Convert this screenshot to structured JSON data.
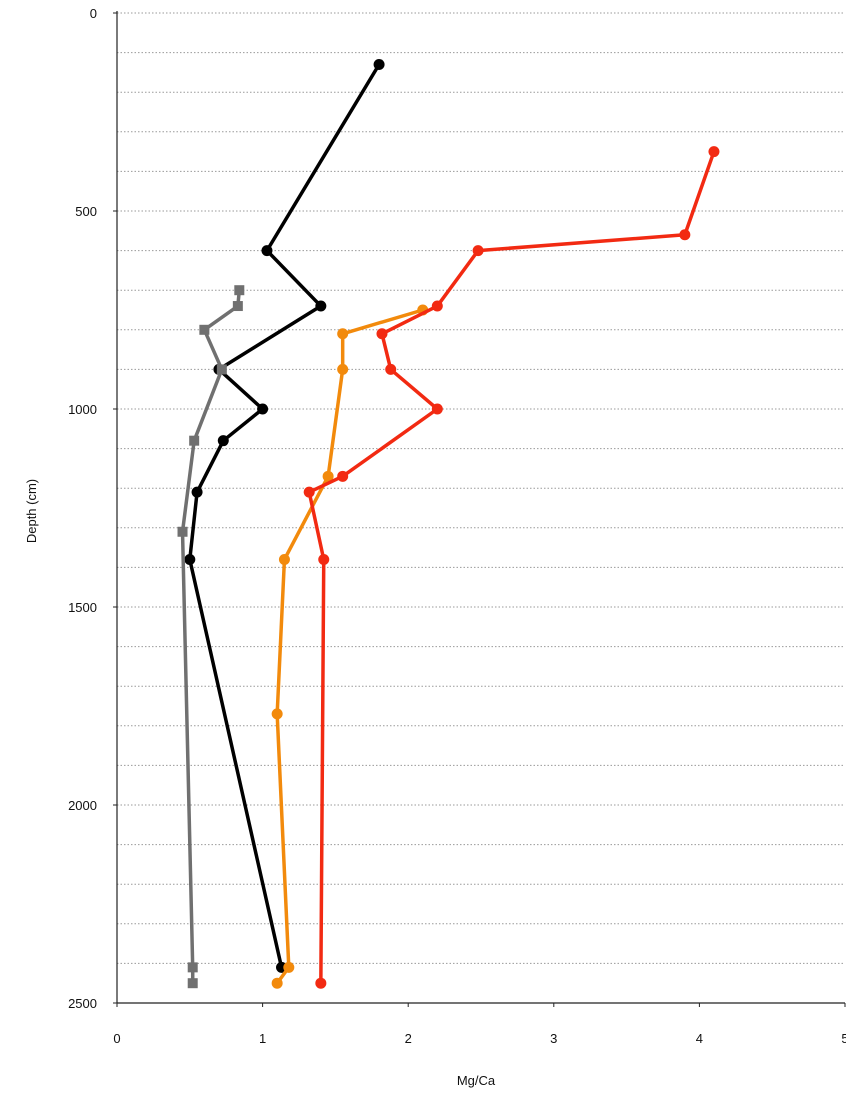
{
  "chart_data": {
    "type": "line",
    "title": "",
    "xlabel": "Mg/Ca",
    "ylabel": "Depth (cm)",
    "xlim": [
      0,
      5
    ],
    "ylim": [
      0,
      2500
    ],
    "y_inverted": true,
    "x_ticks": [
      "0",
      "1",
      "2",
      "3",
      "4",
      "5"
    ],
    "y_ticks": [
      "0",
      "500",
      "1000",
      "1500",
      "2000",
      "2500"
    ],
    "grid": "horizontal dotted every 100 cm",
    "series": [
      {
        "color": "#000000",
        "marker": "circle",
        "points": [
          {
            "x": 1.8,
            "y": 130
          },
          {
            "x": 1.03,
            "y": 600
          },
          {
            "x": 1.4,
            "y": 740
          },
          {
            "x": 0.7,
            "y": 900
          },
          {
            "x": 1.0,
            "y": 1000
          },
          {
            "x": 0.73,
            "y": 1080
          },
          {
            "x": 0.55,
            "y": 1210
          },
          {
            "x": 0.5,
            "y": 1380
          },
          {
            "x": 1.13,
            "y": 2410
          }
        ]
      },
      {
        "color": "#707070",
        "marker": "square",
        "points": [
          {
            "x": 0.84,
            "y": 700
          },
          {
            "x": 0.83,
            "y": 740
          },
          {
            "x": 0.6,
            "y": 800
          },
          {
            "x": 0.72,
            "y": 900
          },
          {
            "x": 0.53,
            "y": 1080
          },
          {
            "x": 0.45,
            "y": 1310
          },
          {
            "x": 0.52,
            "y": 2410
          },
          {
            "x": 0.52,
            "y": 2450
          }
        ]
      },
      {
        "color": "#f28a0c",
        "marker": "circle",
        "points": [
          {
            "x": 2.1,
            "y": 750
          },
          {
            "x": 1.55,
            "y": 810
          },
          {
            "x": 1.55,
            "y": 900
          },
          {
            "x": 1.45,
            "y": 1170
          },
          {
            "x": 1.15,
            "y": 1380
          },
          {
            "x": 1.1,
            "y": 1770
          },
          {
            "x": 1.18,
            "y": 2410
          },
          {
            "x": 1.1,
            "y": 2450
          }
        ]
      },
      {
        "color": "#f22a12",
        "marker": "circle",
        "points": [
          {
            "x": 4.1,
            "y": 350
          },
          {
            "x": 3.9,
            "y": 560
          },
          {
            "x": 2.48,
            "y": 600
          },
          {
            "x": 2.2,
            "y": 740
          },
          {
            "x": 1.82,
            "y": 810
          },
          {
            "x": 1.88,
            "y": 900
          },
          {
            "x": 2.2,
            "y": 1000
          },
          {
            "x": 1.55,
            "y": 1170
          },
          {
            "x": 1.32,
            "y": 1210
          },
          {
            "x": 1.42,
            "y": 1380
          },
          {
            "x": 1.4,
            "y": 2450
          }
        ]
      }
    ]
  }
}
